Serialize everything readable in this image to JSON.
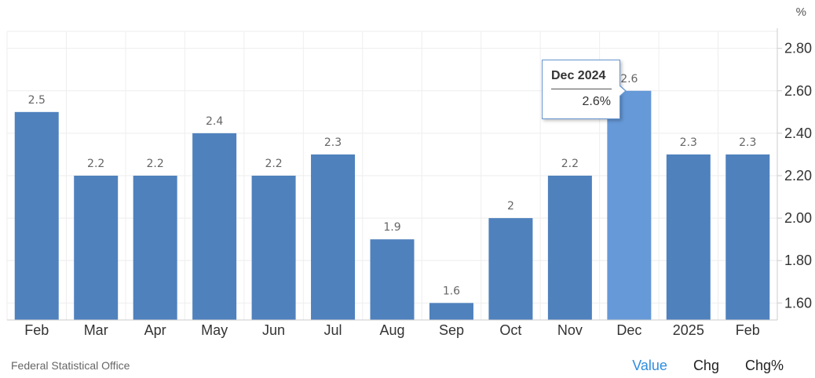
{
  "chart_data": {
    "type": "bar",
    "categories": [
      "Feb",
      "Mar",
      "Apr",
      "May",
      "Jun",
      "Jul",
      "Aug",
      "Sep",
      "Oct",
      "Nov",
      "Dec",
      "2025",
      "Feb"
    ],
    "values": [
      2.5,
      2.2,
      2.2,
      2.4,
      2.2,
      2.3,
      1.9,
      1.6,
      2.0,
      2.2,
      2.6,
      2.3,
      2.3
    ],
    "data_labels": [
      "2.5",
      "2.2",
      "2.2",
      "2.4",
      "2.2",
      "2.3",
      "1.9",
      "1.6",
      "2",
      "2.2",
      "2.6",
      "2.3",
      "2.3"
    ],
    "y_ticks": [
      1.6,
      1.8,
      2.0,
      2.2,
      2.4,
      2.6,
      2.8
    ],
    "y_tick_labels": [
      "1.60",
      "1.80",
      "2.00",
      "2.20",
      "2.40",
      "2.60",
      "2.80"
    ],
    "ylim": [
      1.52,
      2.88
    ],
    "y_unit": "%",
    "y_axis_position": "right",
    "grid": true,
    "highlight_index": 10,
    "colors": {
      "bar": "#4f81bd",
      "bar_highlight": "#6699d8",
      "grid": "#eeeeee",
      "axis": "#cccccc"
    }
  },
  "tooltip": {
    "title": "Dec 2024",
    "value": "2.6%"
  },
  "source": "Federal Statistical Office",
  "controls": {
    "value_label": "Value",
    "chg_label": "Chg",
    "chgpct_label": "Chg%"
  }
}
